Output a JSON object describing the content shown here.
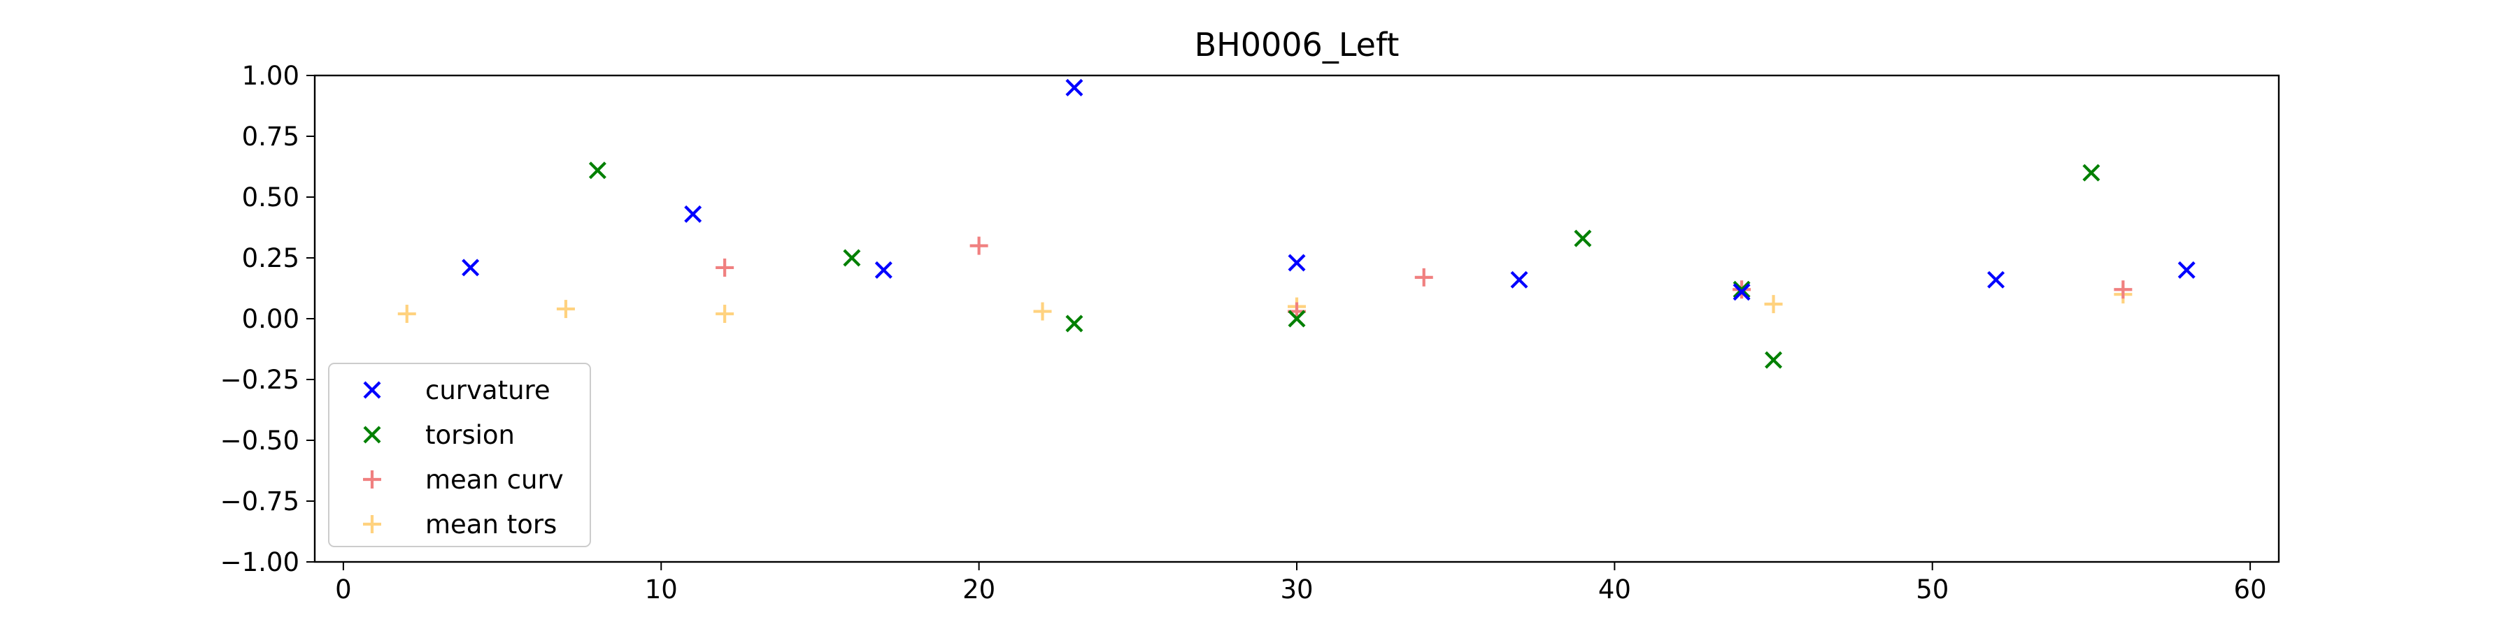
{
  "chart_data": {
    "type": "scatter",
    "title": "BH0006_Left",
    "xlabel": "",
    "ylabel": "",
    "xlim": [
      -0.9,
      60.9
    ],
    "ylim": [
      -1.0,
      1.0
    ],
    "xticks": [
      0,
      10,
      20,
      30,
      40,
      50,
      60
    ],
    "xtick_labels": [
      "0",
      "10",
      "20",
      "30",
      "40",
      "50",
      "60"
    ],
    "yticks": [
      1.0,
      0.75,
      0.5,
      0.25,
      0.0,
      -0.25,
      -0.5,
      -0.75,
      -1.0
    ],
    "ytick_labels": [
      "1.00",
      "0.75",
      "0.50",
      "0.25",
      "0.00",
      "−0.25",
      "−0.50",
      "−0.75",
      "−1.00"
    ],
    "grid": false,
    "legend_position": "lower-left",
    "series": [
      {
        "name": "curvature",
        "marker": "x",
        "color": "#0000ff",
        "x": [
          4,
          11,
          17,
          23,
          30,
          37,
          44,
          52,
          58
        ],
        "y": [
          0.21,
          0.43,
          0.2,
          0.95,
          0.23,
          0.16,
          0.11,
          0.16,
          0.2
        ]
      },
      {
        "name": "torsion",
        "marker": "x",
        "color": "#008000",
        "x": [
          8,
          16,
          23,
          30,
          39,
          44,
          45,
          55
        ],
        "y": [
          0.61,
          0.25,
          -0.02,
          0.0,
          0.33,
          0.12,
          -0.17,
          0.6
        ]
      },
      {
        "name": "mean curv",
        "marker": "+",
        "color": "#f08080",
        "x": [
          12,
          20,
          30,
          34,
          44,
          56
        ],
        "y": [
          0.21,
          0.3,
          0.03,
          0.17,
          0.12,
          0.12
        ]
      },
      {
        "name": "mean tors",
        "marker": "+",
        "color": "#ffd27f",
        "x": [
          2,
          7,
          12,
          22,
          30,
          45,
          56
        ],
        "y": [
          0.02,
          0.04,
          0.02,
          0.03,
          0.05,
          0.06,
          0.1
        ]
      }
    ]
  }
}
